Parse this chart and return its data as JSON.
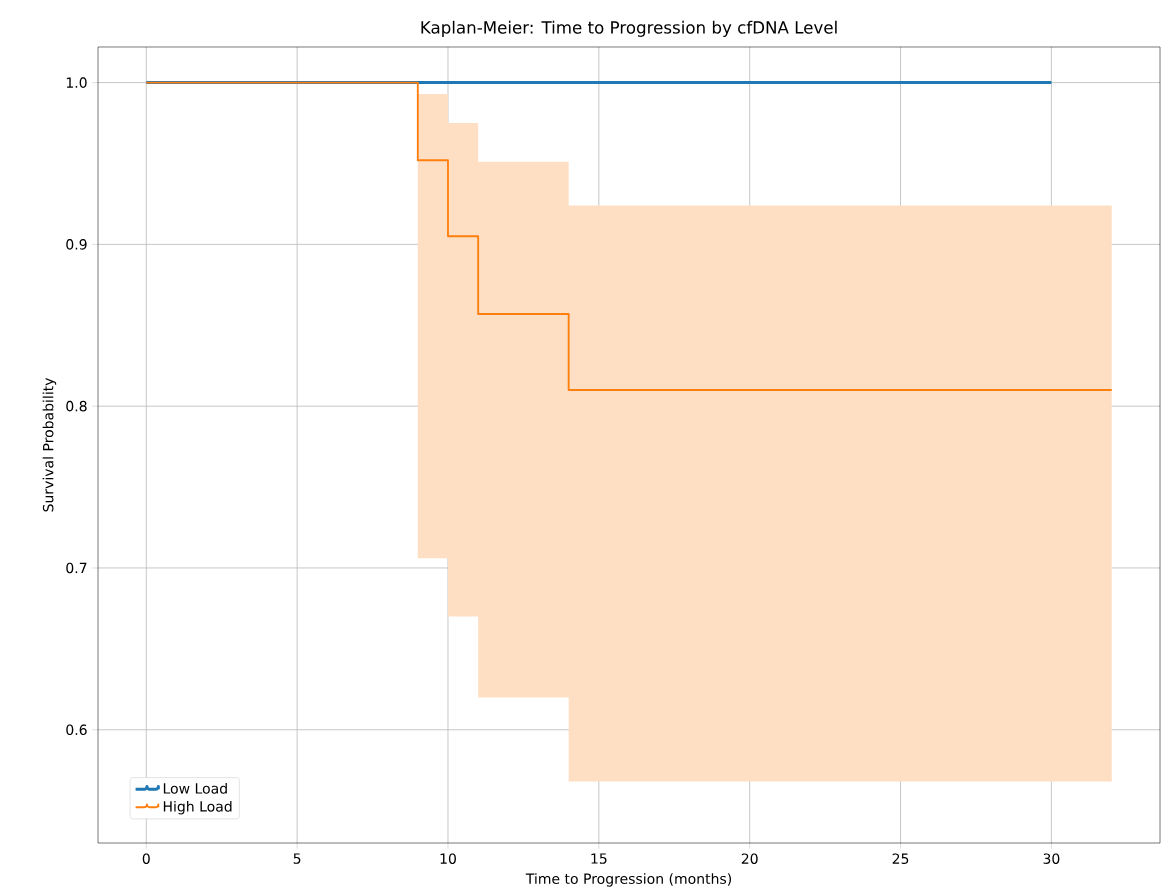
{
  "chart_data": {
    "type": "step",
    "title": "Kaplan-Meier: Time to Progression by cfDNA Level",
    "xlabel": "Time to Progression (months)",
    "ylabel": "Survival Probability",
    "series": [
      {
        "name": "Low Load",
        "color": "#1f77b4",
        "x": [
          0,
          30
        ],
        "values": [
          1.0,
          1.0
        ]
      },
      {
        "name": "High Load",
        "color": "#ff7f0e",
        "x": [
          0,
          9,
          10,
          11,
          14,
          32
        ],
        "values": [
          1.0,
          0.952,
          0.905,
          0.857,
          0.81,
          0.81
        ],
        "lower": [
          1.0,
          0.706,
          0.67,
          0.62,
          0.568,
          0.568
        ],
        "upper": [
          1.0,
          0.993,
          0.975,
          0.951,
          0.924,
          0.924
        ]
      }
    ],
    "xlim": [
      -1.6,
      33.6
    ],
    "ylim": [
      0.53,
      1.022
    ],
    "xticks": [
      0,
      5,
      10,
      15,
      20,
      25,
      30
    ],
    "yticks": [
      0.6,
      0.7,
      0.8,
      0.9,
      {
        "value": 1.0,
        "label": "1.0"
      }
    ],
    "grid": true,
    "legend": "bottom left"
  }
}
